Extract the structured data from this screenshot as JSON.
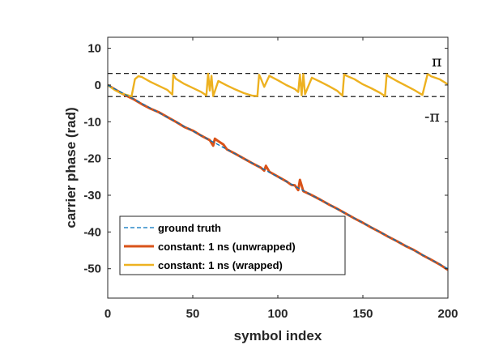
{
  "chart_data": {
    "type": "line",
    "xlabel": "symbol index",
    "ylabel": "carrier phase (rad)",
    "xlim": [
      0,
      200
    ],
    "ylim": [
      -58,
      13
    ],
    "xticks": [
      0,
      50,
      100,
      150,
      200
    ],
    "yticks": [
      10,
      0,
      -10,
      -20,
      -30,
      -40,
      -50
    ],
    "grid": false,
    "legend_position": "bottom-left",
    "reference_lines": [
      {
        "y": 3.1416,
        "label": "π",
        "style": "dashed",
        "color": "#000000"
      },
      {
        "y": -3.1416,
        "label": "-π",
        "style": "dashed",
        "color": "#000000"
      }
    ],
    "series": [
      {
        "name": "ground truth",
        "style": "dashed",
        "color": "#0072BD",
        "x": [
          0,
          200
        ],
        "y": [
          0,
          -50
        ]
      },
      {
        "name": "constant: 1 ns (unwrapped)",
        "style": "solid",
        "color": "#D95319",
        "x": [
          0,
          5,
          10,
          14,
          15,
          20,
          25,
          30,
          32,
          35,
          40,
          45,
          50,
          55,
          60,
          62,
          63,
          65,
          68,
          70,
          75,
          80,
          85,
          90,
          92,
          93,
          95,
          100,
          105,
          108,
          110,
          112,
          113,
          115,
          120,
          125,
          130,
          135,
          140,
          145,
          150,
          155,
          160,
          165,
          170,
          175,
          180,
          185,
          190,
          195,
          200
        ],
        "y": [
          0,
          -1.4,
          -2.7,
          -3.6,
          -3.8,
          -5.2,
          -6.4,
          -7.4,
          -7.9,
          -8.7,
          -10.0,
          -11.4,
          -12.4,
          -13.8,
          -15.0,
          -16.5,
          -14.6,
          -15.3,
          -16.2,
          -17.5,
          -18.7,
          -20.0,
          -21.3,
          -22.5,
          -23.3,
          -22.0,
          -23.6,
          -24.9,
          -26.2,
          -27.2,
          -27.3,
          -28.6,
          -25.8,
          -28.9,
          -30.0,
          -31.2,
          -32.5,
          -33.7,
          -35.0,
          -36.3,
          -37.5,
          -38.8,
          -40.0,
          -41.3,
          -42.5,
          -43.8,
          -44.9,
          -46.3,
          -47.5,
          -48.8,
          -50.3
        ]
      },
      {
        "name": "constant: 1 ns (wrapped)",
        "style": "solid",
        "color": "#EDB120",
        "x": [
          0,
          4,
          8,
          12,
          14,
          16,
          18,
          20,
          25,
          30,
          35,
          38,
          38.5,
          40,
          45,
          50,
          55,
          58,
          59,
          60,
          61,
          62,
          65,
          70,
          75,
          80,
          85,
          88,
          89,
          90,
          92,
          95,
          100,
          105,
          110,
          112,
          113,
          114,
          115,
          116,
          120,
          125,
          130,
          135,
          138,
          139,
          140,
          145,
          150,
          155,
          160,
          163,
          164,
          165,
          170,
          175,
          180,
          185,
          188,
          189,
          190,
          195,
          200
        ],
        "y": [
          0,
          -1.3,
          -2.3,
          -2.8,
          -3.1,
          1.6,
          2.4,
          2.2,
          0.9,
          -0.2,
          -1.3,
          -2.6,
          2.8,
          1.7,
          0.3,
          -0.8,
          -1.9,
          -2.8,
          3.1,
          -1.5,
          2.5,
          -3.0,
          1.1,
          -0.1,
          -1.2,
          -2.2,
          -2.9,
          -3.0,
          2.8,
          1.8,
          -0.5,
          2.5,
          1.3,
          0.0,
          -1.1,
          -1.9,
          2.9,
          -2.8,
          3.0,
          -2.5,
          2.0,
          0.9,
          -0.3,
          -1.6,
          -2.9,
          2.9,
          2.6,
          1.6,
          0.2,
          -0.9,
          -2.1,
          -3.0,
          2.9,
          2.4,
          1.1,
          -0.1,
          -1.3,
          -2.7,
          2.9,
          2.8,
          2.4,
          1.6,
          0.2
        ]
      }
    ],
    "annotations": [
      "π",
      "-π"
    ]
  }
}
